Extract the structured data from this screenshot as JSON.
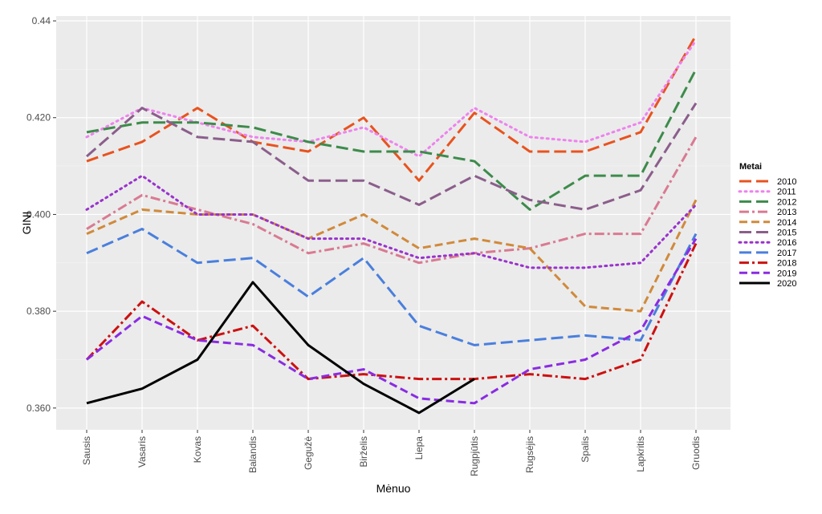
{
  "chart_data": {
    "type": "line",
    "title": "",
    "xlabel": "Mėnuo",
    "ylabel": "GINI",
    "categories": [
      "Sausis",
      "Vasaris",
      "Kovas",
      "Balandis",
      "Gegužė",
      "Birželis",
      "Liepa",
      "Rugpjūtis",
      "Rugsėjis",
      "Spalis",
      "Lapkritis",
      "Gruodis"
    ],
    "ylim": [
      0.3555,
      0.441
    ],
    "yticks": [
      0.36,
      0.38,
      0.4,
      0.42,
      0.44
    ],
    "ytick_labels": [
      "0.360",
      "0.380",
      "0.400",
      "0.420",
      "0.44"
    ],
    "grid": true,
    "legend_title": "Metai",
    "legend_position": "right",
    "series": [
      {
        "name": "2010",
        "color": "#E8531F",
        "dash": "longdash",
        "values": [
          0.411,
          0.415,
          0.422,
          0.415,
          0.413,
          0.42,
          0.407,
          0.421,
          0.413,
          0.413,
          0.417,
          0.437
        ]
      },
      {
        "name": "2011",
        "color": "#EE82EE",
        "dash": "dotted",
        "values": [
          0.416,
          0.422,
          0.419,
          0.416,
          0.415,
          0.418,
          0.412,
          0.422,
          0.416,
          0.415,
          0.419,
          0.436
        ]
      },
      {
        "name": "2012",
        "color": "#3D8B4B",
        "dash": "longdash",
        "values": [
          0.417,
          0.419,
          0.419,
          0.418,
          0.415,
          0.413,
          0.413,
          0.411,
          0.401,
          0.408,
          0.408,
          0.43
        ]
      },
      {
        "name": "2013",
        "color": "#D97A92",
        "dash": "dashdot",
        "values": [
          0.397,
          0.404,
          0.401,
          0.398,
          0.392,
          0.394,
          0.39,
          0.392,
          0.393,
          0.396,
          0.396,
          0.416
        ]
      },
      {
        "name": "2014",
        "color": "#D08A3C",
        "dash": "dashed",
        "values": [
          0.396,
          0.401,
          0.4,
          0.4,
          0.395,
          0.4,
          0.393,
          0.395,
          0.393,
          0.381,
          0.38,
          0.403
        ]
      },
      {
        "name": "2015",
        "color": "#8B5E8B",
        "dash": "longdash",
        "values": [
          0.412,
          0.422,
          0.416,
          0.415,
          0.407,
          0.407,
          0.402,
          0.408,
          0.403,
          0.401,
          0.405,
          0.423
        ]
      },
      {
        "name": "2016",
        "color": "#9932CC",
        "dash": "dotted",
        "values": [
          0.401,
          0.408,
          0.4,
          0.4,
          0.395,
          0.395,
          0.391,
          0.392,
          0.389,
          0.389,
          0.39,
          0.402
        ]
      },
      {
        "name": "2017",
        "color": "#4A7FDD",
        "dash": "longdash",
        "values": [
          0.392,
          0.397,
          0.39,
          0.391,
          0.383,
          0.391,
          0.377,
          0.373,
          0.374,
          0.375,
          0.374,
          0.396
        ]
      },
      {
        "name": "2018",
        "color": "#CC1111",
        "dash": "dashdot",
        "values": [
          0.37,
          0.382,
          0.374,
          0.377,
          0.366,
          0.367,
          0.366,
          0.366,
          0.367,
          0.366,
          0.37,
          0.394
        ]
      },
      {
        "name": "2019",
        "color": "#8A2BE2",
        "dash": "dashed",
        "values": [
          0.37,
          0.379,
          0.374,
          0.373,
          0.366,
          0.368,
          0.362,
          0.361,
          0.368,
          0.37,
          0.376,
          0.395
        ]
      },
      {
        "name": "2020",
        "color": "#000000",
        "dash": "solid",
        "values": [
          0.361,
          0.364,
          0.37,
          0.386,
          0.373,
          0.365,
          0.359,
          0.366,
          null,
          null,
          null,
          null
        ]
      }
    ]
  }
}
